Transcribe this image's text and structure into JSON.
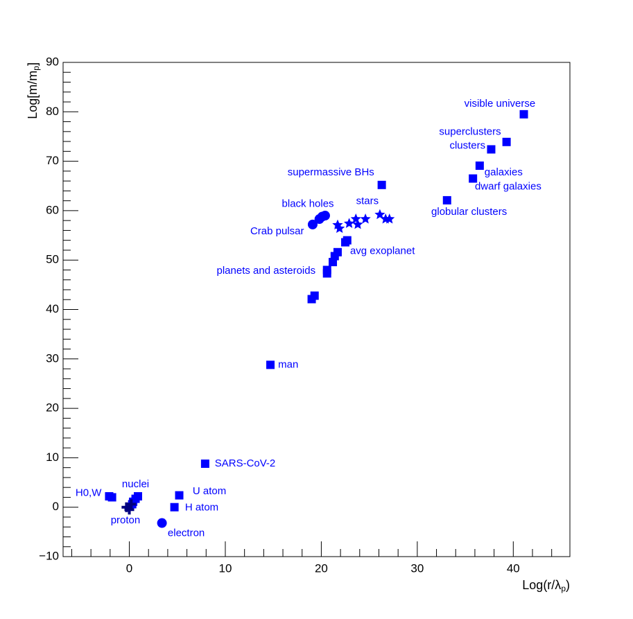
{
  "chart_data": {
    "type": "scatter",
    "x_label": [
      "Log(r/λ",
      "p",
      ")"
    ],
    "y_label": [
      "Log[m/m",
      "p",
      "]"
    ],
    "xlim": [
      -6.9,
      45.9
    ],
    "ylim": [
      -10,
      90
    ],
    "xticks": [
      0,
      10,
      20,
      30,
      40
    ],
    "yticks": [
      {
        "value": -10,
        "label": "−10"
      },
      0,
      10,
      20,
      30,
      40,
      50,
      60,
      70,
      80,
      90
    ],
    "xminorticks": [
      -6,
      -4,
      -2,
      2,
      4,
      6,
      8,
      12,
      14,
      16,
      18,
      22,
      24,
      26,
      28,
      32,
      34,
      36,
      38,
      42,
      44
    ],
    "yminorticks": [
      -8,
      -6,
      -4,
      -2,
      2,
      4,
      6,
      8,
      12,
      14,
      16,
      18,
      22,
      24,
      26,
      28,
      32,
      34,
      36,
      38,
      42,
      44,
      46,
      48,
      52,
      54,
      56,
      58,
      62,
      64,
      66,
      68,
      72,
      74,
      76,
      78,
      82,
      84,
      86,
      88
    ],
    "series": [
      {
        "marker": "square",
        "color": "#0000ff",
        "x": [
          41.1,
          39.3,
          37.7,
          36.5,
          35.8,
          33.1,
          26.3,
          22.7,
          22.5,
          21.7,
          21.4,
          21.2,
          20.6,
          20.6,
          19.3,
          19.0,
          14.7,
          7.9,
          5.2,
          4.7,
          -2.1,
          -1.8,
          0.9,
          0.65,
          0.4,
          0.3
        ],
        "values": [
          79.5,
          73.9,
          72.4,
          69.1,
          66.5,
          62.1,
          65.2,
          54.0,
          53.6,
          51.6,
          50.8,
          49.6,
          48.0,
          47.3,
          42.8,
          42.1,
          28.8,
          8.8,
          2.4,
          0,
          2.2,
          2.0,
          2.2,
          1.7,
          1.1,
          0.6
        ]
      },
      {
        "marker": "circle",
        "color": "#0000ff",
        "x": [
          3.4,
          19.1,
          19.8,
          20.1,
          20.4
        ],
        "values": [
          -3.2,
          57.2,
          58.3,
          58.8,
          59.0
        ]
      },
      {
        "marker": "star",
        "color": "#0000ff",
        "x": [
          21.7,
          21.9,
          22.9,
          23.6,
          23.8,
          24.6,
          26.1,
          26.7,
          27.1
        ],
        "values": [
          57.1,
          56.4,
          57.4,
          58.3,
          57.2,
          58.3,
          59.2,
          58.3,
          58.3
        ]
      },
      {
        "marker": "cross",
        "color": "#000080",
        "x": [
          -0.3,
          0.0,
          0.2
        ],
        "values": [
          0,
          -0.5,
          0.6
        ]
      }
    ],
    "annotations": [
      {
        "text": "visible universe",
        "x": 38.6,
        "y": 81.6,
        "anchor": "middle"
      },
      {
        "text": "superclusters",
        "x": 35.5,
        "y": 75.9,
        "anchor": "middle"
      },
      {
        "text": "clusters",
        "x": 37.1,
        "y": 73.1,
        "anchor": "end"
      },
      {
        "text": "galaxies",
        "x": 37.0,
        "y": 67.7,
        "anchor": "start"
      },
      {
        "text": "dwarf galaxies",
        "x": 36.0,
        "y": 64.8,
        "anchor": "start"
      },
      {
        "text": "globular clusters",
        "x": 35.4,
        "y": 59.7,
        "anchor": "middle"
      },
      {
        "text": "supermassive BHs",
        "x": 21.0,
        "y": 67.7,
        "anchor": "middle"
      },
      {
        "text": "stars",
        "x": 24.8,
        "y": 61.9,
        "anchor": "middle"
      },
      {
        "text": "black holes",
        "x": 18.6,
        "y": 61.3,
        "anchor": "middle"
      },
      {
        "text": "Crab pulsar",
        "x": 18.2,
        "y": 55.8,
        "anchor": "end"
      },
      {
        "text": "avg exoplanet",
        "x": 23.0,
        "y": 51.8,
        "anchor": "start"
      },
      {
        "text": "planets and asteroids",
        "x": 19.4,
        "y": 47.8,
        "anchor": "end"
      },
      {
        "text": "man",
        "x": 15.5,
        "y": 28.8,
        "anchor": "start"
      },
      {
        "text": "SARS-CoV-2",
        "x": 8.9,
        "y": 8.8,
        "anchor": "start"
      },
      {
        "text": "U atom",
        "x": 6.6,
        "y": 3.2,
        "anchor": "start"
      },
      {
        "text": "H atom",
        "x": 5.8,
        "y": -0.1,
        "anchor": "start"
      },
      {
        "text": "electron",
        "x": 4.0,
        "y": -5.3,
        "anchor": "start"
      },
      {
        "text": "H0,W",
        "x": -2.9,
        "y": 2.8,
        "anchor": "end"
      },
      {
        "text": "nuclei",
        "x": 0.65,
        "y": 4.6,
        "anchor": "middle"
      },
      {
        "text": "proton",
        "x": -0.4,
        "y": -2.7,
        "anchor": "middle"
      }
    ],
    "annotation_color": "#0000ff"
  }
}
